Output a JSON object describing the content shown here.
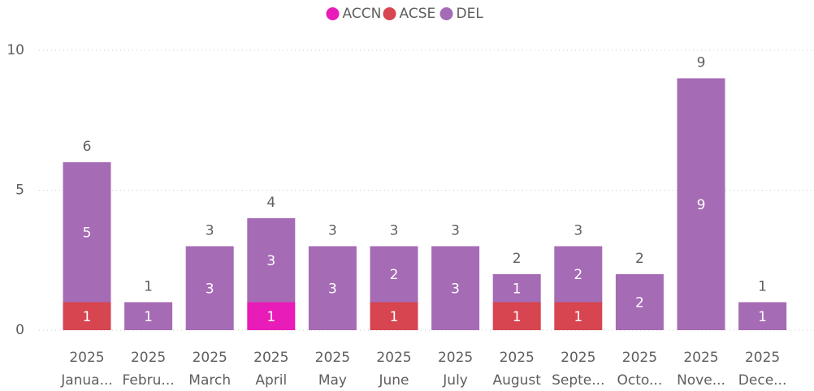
{
  "chart_data": {
    "type": "stacked_bar",
    "categories": [
      [
        "2025",
        "Janua..."
      ],
      [
        "2025",
        "Febru..."
      ],
      [
        "2025",
        "March"
      ],
      [
        "2025",
        "April"
      ],
      [
        "2025",
        "May"
      ],
      [
        "2025",
        "June"
      ],
      [
        "2025",
        "July"
      ],
      [
        "2025",
        "August"
      ],
      [
        "2025",
        "Septe..."
      ],
      [
        "2025",
        "Octo..."
      ],
      [
        "2025",
        "Nove..."
      ],
      [
        "2025",
        "Dece..."
      ]
    ],
    "series": [
      {
        "name": "ACCN",
        "color": "#e81cb8",
        "values": [
          null,
          null,
          null,
          1,
          null,
          null,
          null,
          null,
          null,
          null,
          null,
          null
        ]
      },
      {
        "name": "ACSE",
        "color": "#d64550",
        "values": [
          1,
          null,
          null,
          null,
          null,
          1,
          null,
          1,
          1,
          null,
          null,
          null
        ]
      },
      {
        "name": "DEL",
        "color": "#a66bb5",
        "values": [
          5,
          1,
          3,
          3,
          3,
          2,
          3,
          1,
          2,
          2,
          9,
          1
        ]
      }
    ],
    "totals": [
      6,
      1,
      3,
      4,
      3,
      3,
      3,
      2,
      3,
      2,
      9,
      1
    ],
    "ylim": [
      0,
      10
    ],
    "yticks": [
      0,
      5,
      10
    ],
    "grid": true,
    "legend": "top"
  }
}
